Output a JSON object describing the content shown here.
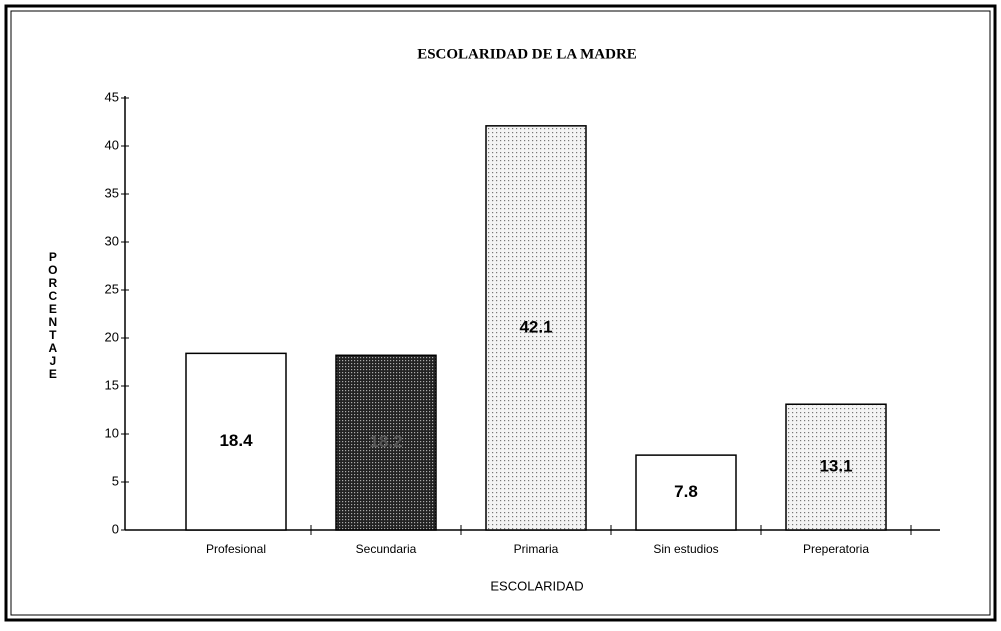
{
  "chart_data": {
    "type": "bar",
    "title": "ESCOLARIDAD DE LA MADRE",
    "x_label": "ESCOLARIDAD",
    "y_label": "PORCENTAJE",
    "categories": [
      "Profesional",
      "Secundaria",
      "Primaria",
      "Sin estudios",
      "Preperatoria"
    ],
    "values": [
      18.4,
      18.2,
      42.1,
      7.8,
      13.1
    ],
    "colors": [
      "#ffffff",
      "#3a3a3a",
      "#e6e6e6",
      "#ffffff",
      "#e6e6e6"
    ],
    "ylim": [
      0,
      45
    ],
    "yticks": [
      0,
      5,
      10,
      15,
      20,
      25,
      30,
      35,
      40,
      45
    ],
    "grid": false
  }
}
